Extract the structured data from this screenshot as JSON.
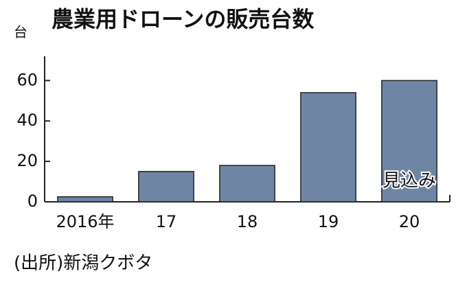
{
  "chart_data": {
    "type": "bar",
    "title": "農業用ドローンの販売台数",
    "y_unit": "台",
    "categories": [
      "2016年",
      "17",
      "18",
      "19",
      "20"
    ],
    "values": [
      2.5,
      15,
      18,
      54,
      60
    ],
    "color": "#6e86a4",
    "ylim": [
      0,
      72
    ],
    "yticks": [
      0,
      20,
      40,
      60
    ],
    "annotation": "見込み",
    "source": "(出所)新潟クボタ"
  }
}
